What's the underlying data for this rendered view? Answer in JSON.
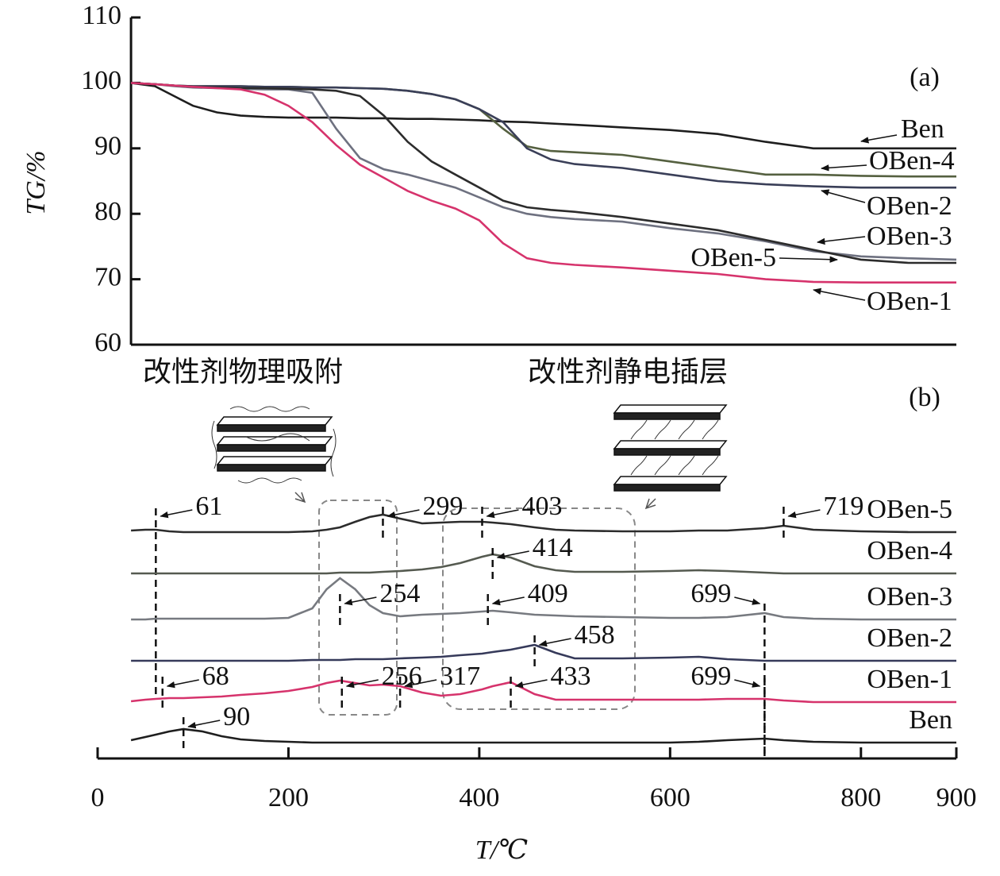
{
  "chart_data": [
    {
      "type": "line",
      "panel_label": "(a)",
      "ylabel": "TG/%",
      "xlim": [
        35,
        900
      ],
      "ylim": [
        60,
        110
      ],
      "yticks": [
        60,
        70,
        80,
        90,
        100,
        110
      ],
      "x": [
        35,
        60,
        80,
        100,
        125,
        150,
        175,
        200,
        225,
        250,
        275,
        300,
        325,
        350,
        375,
        400,
        425,
        450,
        475,
        500,
        550,
        600,
        650,
        700,
        750,
        800,
        850,
        900
      ],
      "series": [
        {
          "name": "Ben",
          "color": "#1e1e1e",
          "values": [
            100,
            99.5,
            98,
            96.5,
            95.5,
            95,
            94.8,
            94.7,
            94.7,
            94.7,
            94.6,
            94.6,
            94.5,
            94.5,
            94.4,
            94.3,
            94.1,
            94,
            93.8,
            93.6,
            93.2,
            92.8,
            92.2,
            91,
            90,
            90,
            90,
            90
          ]
        },
        {
          "name": "OBen-4",
          "color": "#556040",
          "values": [
            100,
            99.8,
            99.6,
            99.5,
            99.5,
            99.5,
            99.4,
            99.4,
            99.3,
            99.3,
            99.2,
            99.1,
            98.8,
            98.3,
            97.5,
            96,
            93,
            90.3,
            89.6,
            89.4,
            89,
            88,
            87,
            86,
            86,
            85.8,
            85.7,
            85.7
          ]
        },
        {
          "name": "OBen-2",
          "color": "#3a3f58",
          "values": [
            100,
            99.8,
            99.6,
            99.5,
            99.5,
            99.5,
            99.4,
            99.4,
            99.3,
            99.3,
            99.2,
            99.1,
            98.8,
            98.3,
            97.5,
            96,
            94,
            90,
            88.3,
            87.6,
            87,
            86,
            85,
            84.5,
            84.2,
            84,
            84,
            84
          ]
        },
        {
          "name": "OBen-3",
          "color": "#6e7180",
          "values": [
            100,
            99.8,
            99.5,
            99.3,
            99.2,
            99.1,
            99,
            99,
            98.5,
            93,
            88.5,
            86.8,
            86,
            85,
            84,
            82.5,
            81,
            80,
            79.5,
            79.2,
            78.8,
            77.8,
            77,
            75.8,
            74.3,
            73.5,
            73.2,
            73
          ]
        },
        {
          "name": "OBen-5",
          "color": "#2c2c2c",
          "values": [
            100,
            99.8,
            99.6,
            99.4,
            99.3,
            99.2,
            99.2,
            99.1,
            99,
            98.8,
            98,
            95,
            91,
            88,
            86,
            84,
            82,
            81,
            80.6,
            80.3,
            79.5,
            78.5,
            77.5,
            76,
            74.5,
            73,
            72.5,
            72.5
          ]
        },
        {
          "name": "OBen-1",
          "color": "#d6336c",
          "values": [
            100,
            99.8,
            99.6,
            99.4,
            99.2,
            99,
            98.2,
            96.5,
            94,
            90.5,
            87.5,
            85.5,
            83.5,
            82,
            80.8,
            79,
            75.5,
            73.2,
            72.5,
            72.2,
            71.8,
            71.3,
            70.8,
            70,
            69.6,
            69.5,
            69.5,
            69.5
          ]
        }
      ]
    },
    {
      "type": "ridgeline",
      "panel_label": "(b)",
      "xlabel": "T/℃",
      "xlim": [
        0,
        900
      ],
      "xticks": [
        0,
        200,
        400,
        600,
        800,
        900
      ],
      "annotations": [
        "改性剂物理吸附",
        "改性剂静电插层"
      ],
      "x": [
        35,
        50,
        61,
        75,
        90,
        110,
        130,
        150,
        175,
        200,
        225,
        240,
        254,
        270,
        285,
        299,
        317,
        340,
        360,
        380,
        403,
        414,
        433,
        458,
        480,
        500,
        550,
        600,
        630,
        660,
        699,
        719,
        750,
        800,
        850,
        900
      ],
      "series": [
        {
          "name": "OBen-5",
          "color": "#2c2c2c",
          "peaks": [
            61,
            299,
            403,
            719
          ],
          "values": [
            2,
            3,
            3,
            1,
            0,
            0,
            0,
            0,
            0,
            0,
            1,
            3,
            6,
            13,
            19,
            22,
            17,
            11,
            12,
            13,
            13,
            12,
            10,
            6,
            3,
            2,
            1,
            1,
            2,
            2,
            5,
            8,
            3,
            1,
            0,
            0
          ]
        },
        {
          "name": "OBen-4",
          "color": "#555a50",
          "peaks": [
            414
          ],
          "values": [
            0,
            0,
            0,
            0,
            0,
            0,
            0,
            0,
            0,
            0,
            0,
            0,
            1,
            1,
            1,
            2,
            3,
            5,
            8,
            13,
            21,
            24,
            20,
            9,
            4,
            2,
            2,
            3,
            4,
            3,
            1,
            0,
            0,
            0,
            0,
            0
          ]
        },
        {
          "name": "OBen-3",
          "color": "#777a80",
          "peaks": [
            254,
            409,
            699
          ],
          "values": [
            0,
            0,
            1,
            1,
            1,
            1,
            1,
            1,
            1,
            2,
            14,
            38,
            52,
            38,
            18,
            8,
            4,
            6,
            7,
            8,
            10,
            11,
            9,
            6,
            5,
            4,
            3,
            2,
            2,
            3,
            8,
            3,
            1,
            0,
            0,
            0
          ]
        },
        {
          "name": "OBen-2",
          "color": "#363a5a",
          "peaks": [
            458
          ],
          "values": [
            0,
            0,
            0,
            0,
            0,
            0,
            0,
            0,
            0,
            0,
            1,
            1,
            1,
            2,
            2,
            2,
            3,
            4,
            5,
            7,
            9,
            11,
            14,
            20,
            10,
            3,
            3,
            4,
            5,
            2,
            0,
            0,
            0,
            0,
            0,
            0
          ]
        },
        {
          "name": "OBen-1",
          "color": "#d6336c",
          "peaks": [
            68,
            256,
            317,
            433,
            699
          ],
          "values": [
            1,
            3,
            4,
            5,
            5,
            6,
            7,
            9,
            11,
            14,
            19,
            24,
            27,
            24,
            21,
            22,
            20,
            12,
            8,
            10,
            16,
            20,
            25,
            10,
            3,
            3,
            3,
            3,
            3,
            4,
            4,
            2,
            0,
            0,
            0,
            0
          ]
        },
        {
          "name": "Ben",
          "color": "#1e1e1e",
          "peaks": [
            90
          ],
          "values": [
            3,
            7,
            10,
            14,
            17,
            14,
            8,
            4,
            2,
            1,
            0,
            0,
            0,
            0,
            0,
            0,
            0,
            0,
            0,
            0,
            0,
            0,
            0,
            0,
            0,
            0,
            0,
            0,
            1,
            3,
            5,
            3,
            1,
            0,
            0,
            0
          ]
        }
      ]
    }
  ]
}
